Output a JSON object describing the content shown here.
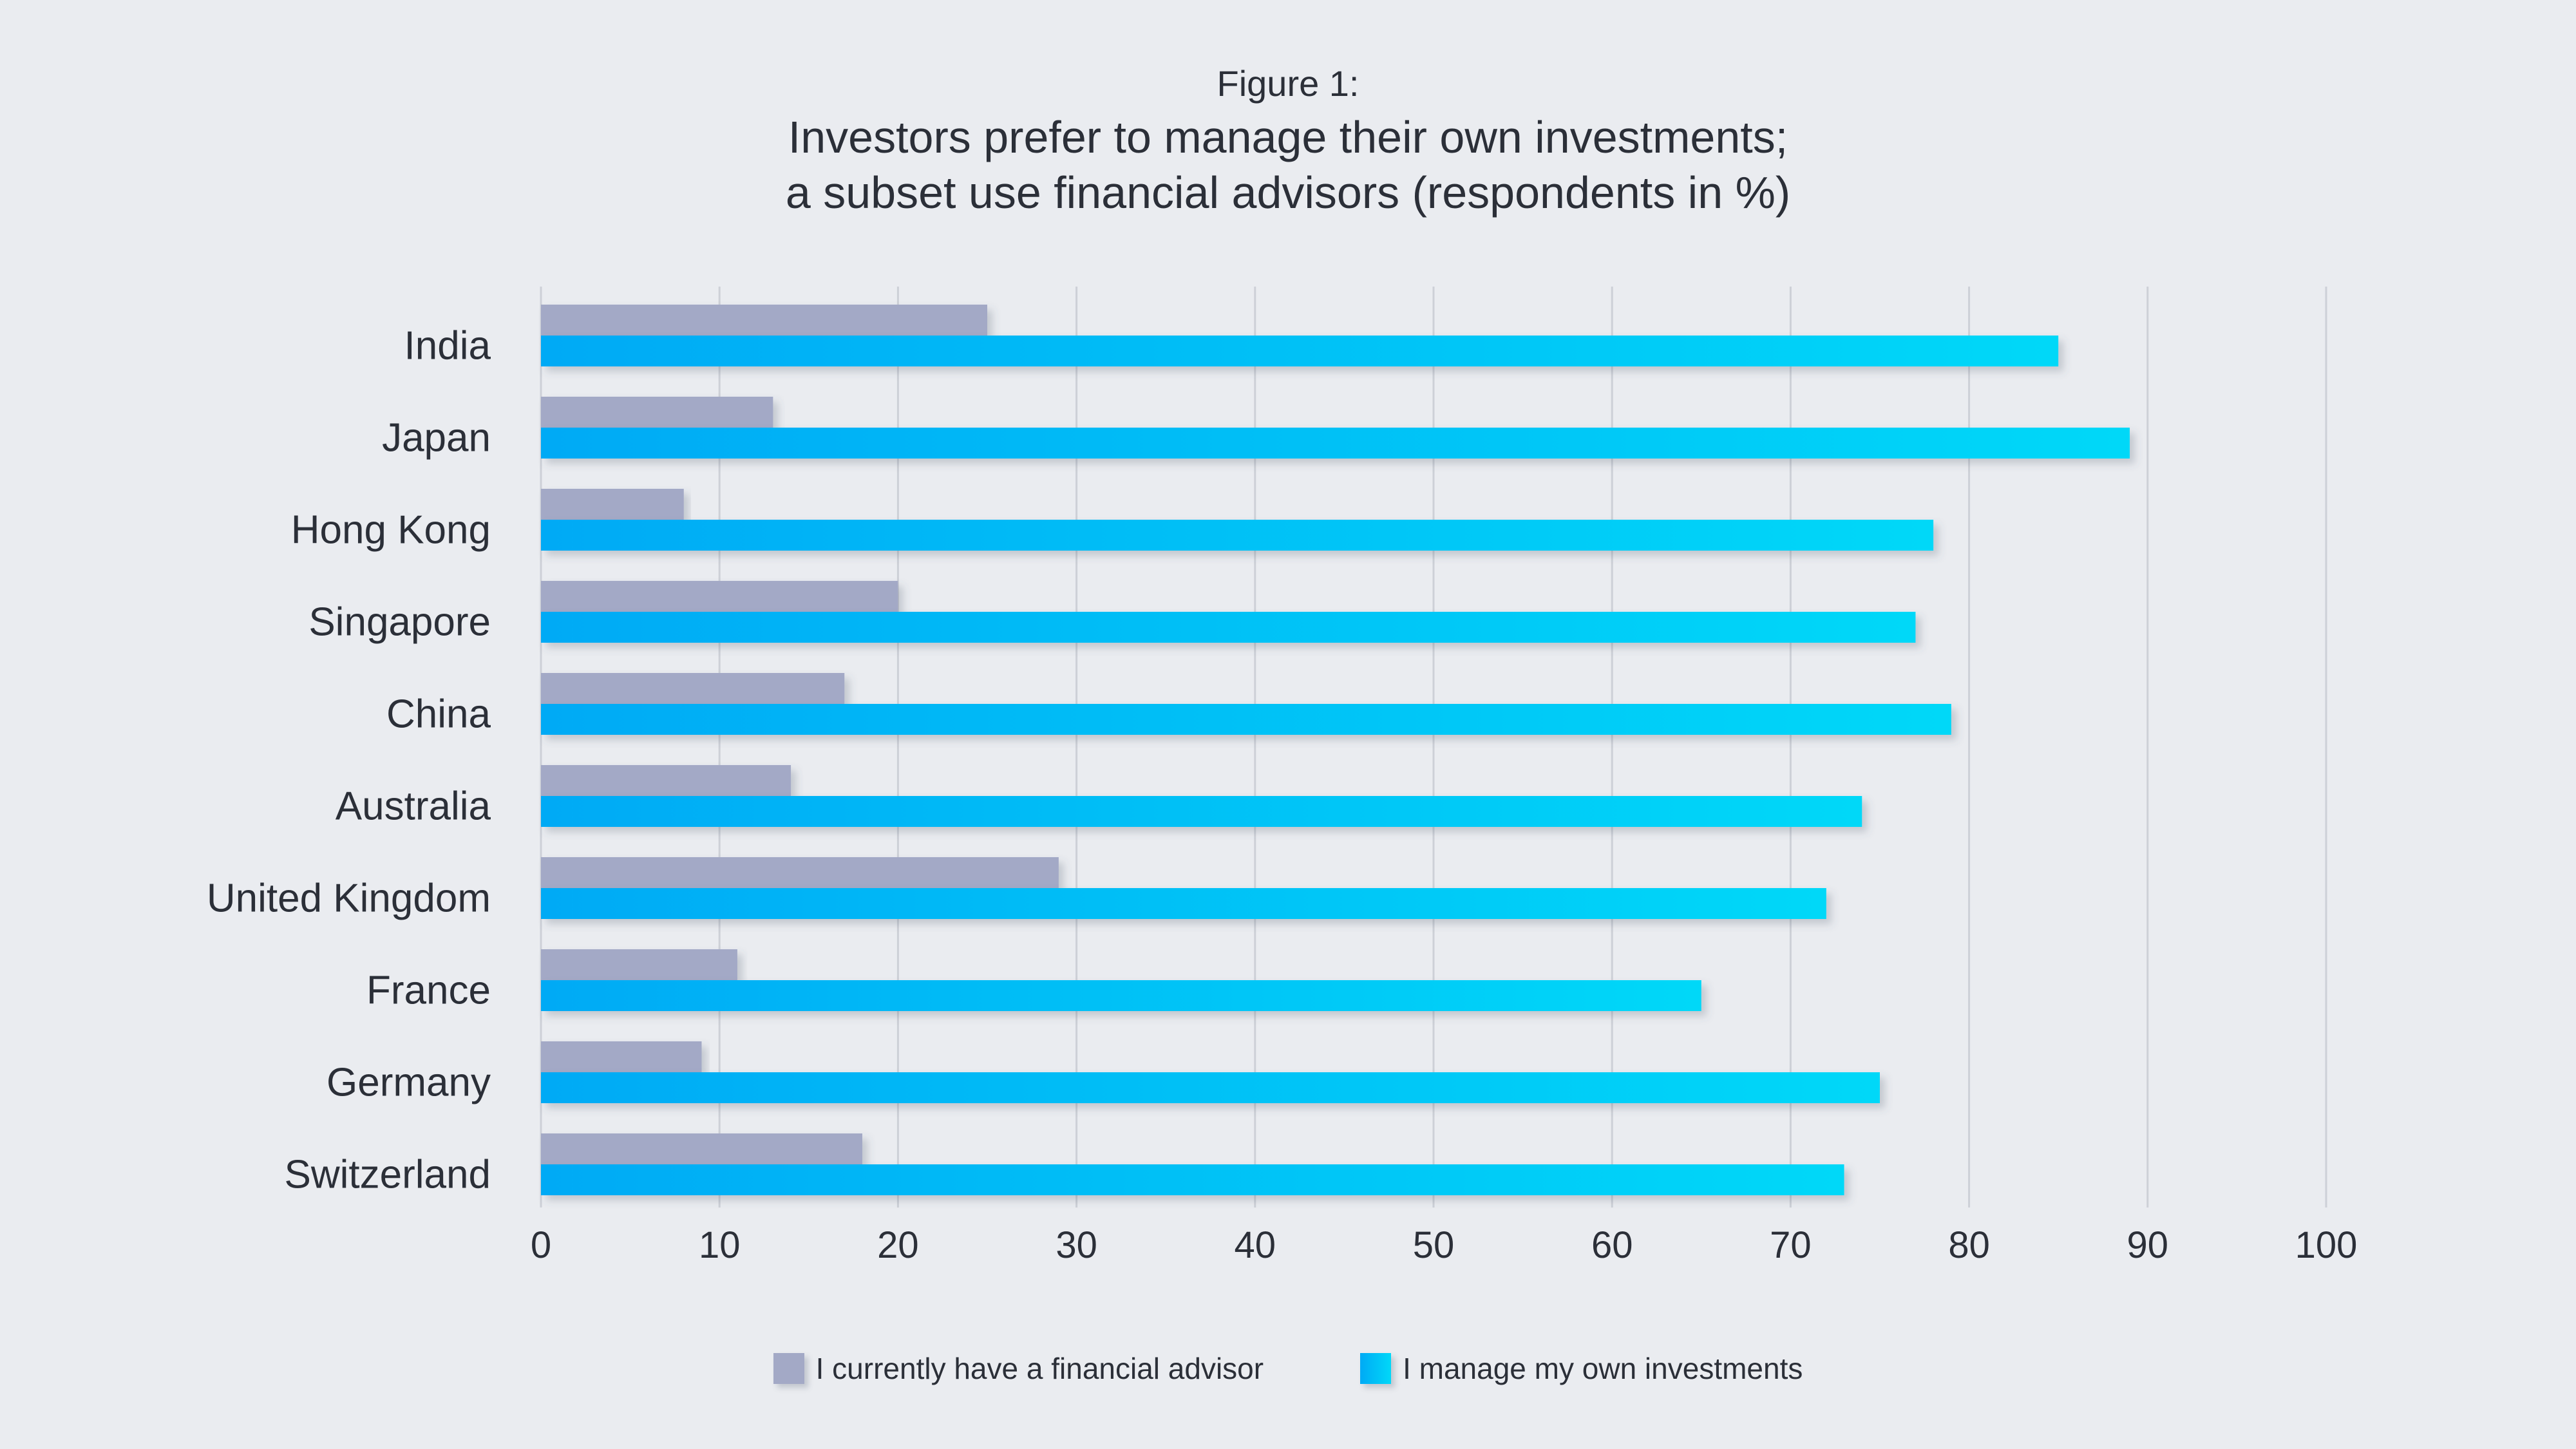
{
  "title": {
    "kicker": "Figure 1:",
    "line1": "Investors prefer to manage their own investments;",
    "line2": "a subset use financial advisors (respondents in %)"
  },
  "chart_data": {
    "type": "bar",
    "orientation": "horizontal",
    "categories": [
      "India",
      "Japan",
      "Hong Kong",
      "Singapore",
      "China",
      "Australia",
      "United Kingdom",
      "France",
      "Germany",
      "Switzerland"
    ],
    "series": [
      {
        "name": "I currently have a financial advisor",
        "color": "#a3a9c6",
        "values": [
          25,
          13,
          8,
          20,
          17,
          14,
          29,
          11,
          9,
          18
        ]
      },
      {
        "name": "I manage my own investments",
        "colors": [
          "#00aaf5",
          "#00d8f8"
        ],
        "values": [
          85,
          89,
          78,
          77,
          79,
          74,
          72,
          65,
          75,
          73
        ]
      }
    ],
    "xlim": [
      0,
      100
    ],
    "xticks": [
      0,
      10,
      20,
      30,
      40,
      50,
      60,
      70,
      80,
      90,
      100
    ],
    "grid": "vertical",
    "legend_position": "bottom"
  }
}
